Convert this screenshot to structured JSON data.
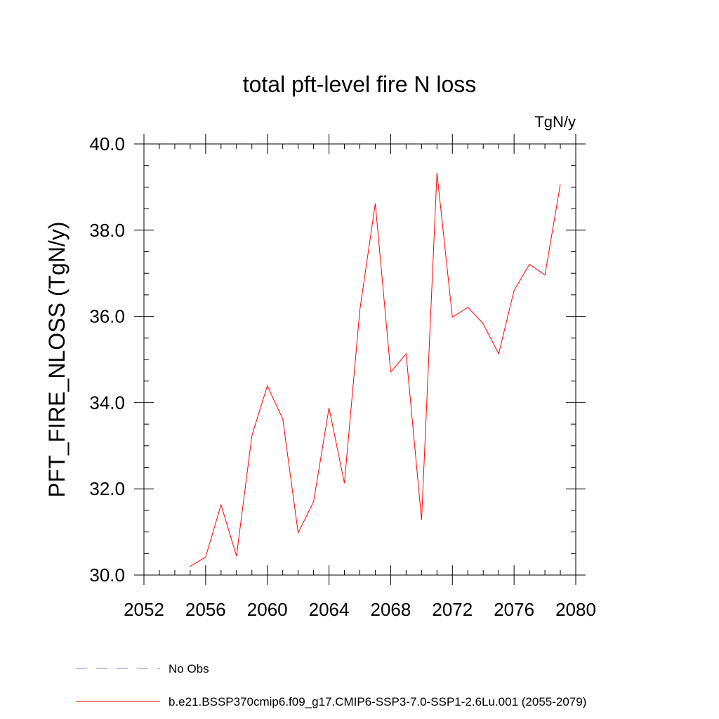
{
  "chart_data": {
    "type": "line",
    "title": "total pft-level fire N loss",
    "units_label": "TgN/y",
    "ylabel": "PFT_FIRE_NLOSS  (TgN/y)",
    "xlabel": "",
    "xlim": [
      2052,
      2080
    ],
    "ylim": [
      30.0,
      40.0
    ],
    "x_ticks": [
      "2052",
      "2056",
      "2060",
      "2064",
      "2068",
      "2072",
      "2076",
      "2080"
    ],
    "y_ticks": [
      "30.0",
      "32.0",
      "34.0",
      "36.0",
      "38.0",
      "40.0"
    ],
    "grid": false,
    "series": [
      {
        "name": "b.e21.BSSP370cmip6.f09_g17.CMIP6-SSP3-7.0-SSP1-2.6Lu.001 (2055-2079)",
        "color": "#ff0000",
        "x": [
          2055,
          2056,
          2057,
          2058,
          2059,
          2060,
          2061,
          2062,
          2063,
          2064,
          2065,
          2066,
          2067,
          2068,
          2069,
          2070,
          2071,
          2072,
          2073,
          2074,
          2075,
          2076,
          2077,
          2078,
          2079
        ],
        "y": [
          30.2,
          30.42,
          31.63,
          30.44,
          33.24,
          34.39,
          33.62,
          30.98,
          31.7,
          33.88,
          32.13,
          36.15,
          38.62,
          34.71,
          35.13,
          31.28,
          39.33,
          35.98,
          36.21,
          35.83,
          35.13,
          36.6,
          37.21,
          36.96,
          39.06
        ]
      }
    ],
    "legend": [
      {
        "label": "No Obs",
        "color": "#8a7dc4",
        "dash": "dashed"
      },
      {
        "label": "b.e21.BSSP370cmip6.f09_g17.CMIP6-SSP3-7.0-SSP1-2.6Lu.001 (2055-2079)",
        "color": "#ff0000",
        "dash": "solid"
      }
    ],
    "legend_position": "bottom"
  }
}
